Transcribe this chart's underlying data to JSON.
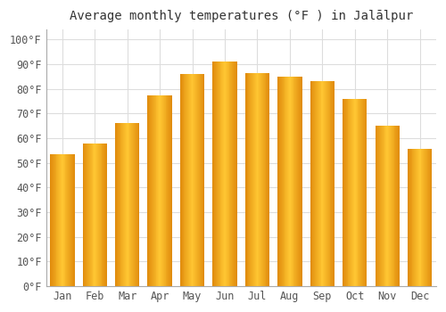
{
  "months": [
    "Jan",
    "Feb",
    "Mar",
    "Apr",
    "May",
    "Jun",
    "Jul",
    "Aug",
    "Sep",
    "Oct",
    "Nov",
    "Dec"
  ],
  "temperatures": [
    53.5,
    58,
    66,
    77.5,
    86,
    91,
    86.5,
    85,
    83,
    76,
    65,
    55.5
  ],
  "title": "Average monthly temperatures (°F ) in Jalālpur",
  "ylabel_ticks": [
    0,
    10,
    20,
    30,
    40,
    50,
    60,
    70,
    80,
    90,
    100
  ],
  "ylim": [
    0,
    104
  ],
  "bar_color_center": "#FFB700",
  "bar_color_edge": "#E08800",
  "background_color": "#ffffff",
  "plot_bg_color": "#ffffff",
  "grid_color": "#dddddd",
  "title_fontsize": 10,
  "tick_fontsize": 8.5,
  "bar_width": 0.75
}
